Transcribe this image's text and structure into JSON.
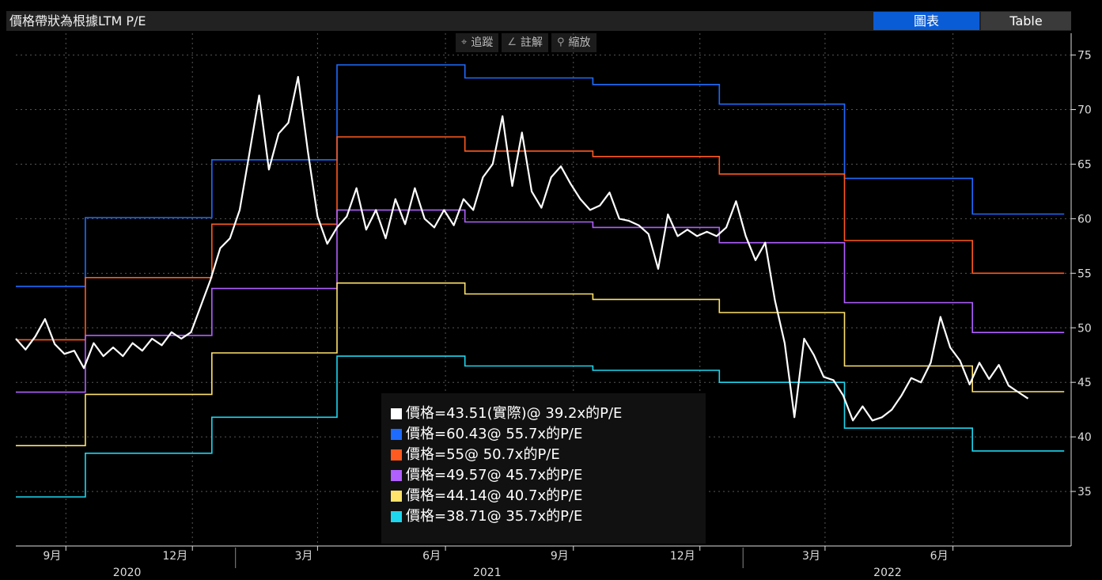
{
  "header": {
    "title": "價格帶狀為根據LTM P/E"
  },
  "tabs": [
    {
      "label": "圖表",
      "active": true
    },
    {
      "label": "Table",
      "active": false
    }
  ],
  "toolbar": [
    {
      "icon": "crosshair-icon",
      "glyph": "⌖",
      "label": "追蹤"
    },
    {
      "icon": "pencil-icon",
      "glyph": "∠",
      "label": "註解"
    },
    {
      "icon": "magnifier-icon",
      "glyph": "⚲",
      "label": "縮放"
    }
  ],
  "colors": {
    "price": "#ffffff",
    "b55_7": "#1e6cff",
    "b50_7": "#ff5a1f",
    "b45_7": "#b060ff",
    "b40_7": "#ffe36a",
    "b35_7": "#1ed7ef"
  },
  "chart_data": {
    "type": "line",
    "ylim": [
      30,
      77
    ],
    "yticks": [
      35,
      40,
      45,
      50,
      55,
      60,
      65,
      70,
      75
    ],
    "x_range": [
      "2020-07-27",
      "2022-08-25"
    ],
    "month_ticks": [
      {
        "label": "9月",
        "date": "2020-09-01"
      },
      {
        "label": "12月",
        "date": "2020-12-01"
      },
      {
        "label": "3月",
        "date": "2021-03-01"
      },
      {
        "label": "6月",
        "date": "2021-06-01"
      },
      {
        "label": "9月",
        "date": "2021-09-01"
      },
      {
        "label": "12月",
        "date": "2021-12-01"
      },
      {
        "label": "3月",
        "date": "2022-03-01"
      },
      {
        "label": "6月",
        "date": "2022-06-01"
      }
    ],
    "year_labels": [
      {
        "label": "2020",
        "date": "2020-10-15"
      },
      {
        "label": "2021",
        "date": "2021-07-01"
      },
      {
        "label": "2022",
        "date": "2022-04-15"
      }
    ],
    "band_breaks": [
      "2020-07-27",
      "2020-09-15",
      "2020-12-15",
      "2021-03-15",
      "2021-06-15",
      "2021-09-15",
      "2021-12-15",
      "2022-03-15",
      "2022-06-15",
      "2022-08-20"
    ],
    "series": [
      {
        "key": "price",
        "legend": "價格=43.51(實際)@ 39.2x的P/E",
        "points": [
          [
            "2020-07-27",
            49.0
          ],
          [
            "2020-08-03",
            48.0
          ],
          [
            "2020-08-10",
            49.2
          ],
          [
            "2020-08-17",
            50.8
          ],
          [
            "2020-08-24",
            48.5
          ],
          [
            "2020-08-31",
            47.6
          ],
          [
            "2020-09-07",
            47.9
          ],
          [
            "2020-09-14",
            46.3
          ],
          [
            "2020-09-21",
            48.6
          ],
          [
            "2020-09-28",
            47.4
          ],
          [
            "2020-10-05",
            48.2
          ],
          [
            "2020-10-12",
            47.4
          ],
          [
            "2020-10-19",
            48.6
          ],
          [
            "2020-10-26",
            47.9
          ],
          [
            "2020-11-02",
            49.0
          ],
          [
            "2020-11-09",
            48.4
          ],
          [
            "2020-11-16",
            49.6
          ],
          [
            "2020-11-23",
            49.0
          ],
          [
            "2020-11-30",
            49.6
          ],
          [
            "2020-12-07",
            52.0
          ],
          [
            "2020-12-14",
            54.4
          ],
          [
            "2020-12-21",
            57.3
          ],
          [
            "2020-12-28",
            58.2
          ],
          [
            "2021-01-04",
            60.8
          ],
          [
            "2021-01-11",
            66.0
          ],
          [
            "2021-01-18",
            71.3
          ],
          [
            "2021-01-25",
            64.5
          ],
          [
            "2021-02-01",
            67.8
          ],
          [
            "2021-02-08",
            68.8
          ],
          [
            "2021-02-15",
            73.0
          ],
          [
            "2021-02-22",
            66.2
          ],
          [
            "2021-03-01",
            60.2
          ],
          [
            "2021-03-08",
            57.7
          ],
          [
            "2021-03-15",
            59.2
          ],
          [
            "2021-03-22",
            60.2
          ],
          [
            "2021-03-29",
            62.8
          ],
          [
            "2021-04-05",
            59.0
          ],
          [
            "2021-04-12",
            60.8
          ],
          [
            "2021-04-19",
            58.2
          ],
          [
            "2021-04-26",
            61.8
          ],
          [
            "2021-05-03",
            59.5
          ],
          [
            "2021-05-10",
            62.8
          ],
          [
            "2021-05-17",
            60.0
          ],
          [
            "2021-05-24",
            59.2
          ],
          [
            "2021-05-31",
            60.8
          ],
          [
            "2021-06-07",
            59.4
          ],
          [
            "2021-06-14",
            61.8
          ],
          [
            "2021-06-21",
            60.8
          ],
          [
            "2021-06-28",
            63.8
          ],
          [
            "2021-07-05",
            65.0
          ],
          [
            "2021-07-12",
            69.4
          ],
          [
            "2021-07-19",
            63.0
          ],
          [
            "2021-07-26",
            67.9
          ],
          [
            "2021-08-02",
            62.5
          ],
          [
            "2021-08-09",
            61.0
          ],
          [
            "2021-08-16",
            63.8
          ],
          [
            "2021-08-23",
            64.8
          ],
          [
            "2021-08-30",
            63.2
          ],
          [
            "2021-09-06",
            61.8
          ],
          [
            "2021-09-13",
            60.8
          ],
          [
            "2021-09-20",
            61.2
          ],
          [
            "2021-09-27",
            62.4
          ],
          [
            "2021-10-04",
            60.0
          ],
          [
            "2021-10-11",
            59.8
          ],
          [
            "2021-10-18",
            59.4
          ],
          [
            "2021-10-25",
            58.6
          ],
          [
            "2021-11-01",
            55.4
          ],
          [
            "2021-11-08",
            60.4
          ],
          [
            "2021-11-15",
            58.4
          ],
          [
            "2021-11-22",
            59.0
          ],
          [
            "2021-11-29",
            58.4
          ],
          [
            "2021-12-06",
            58.8
          ],
          [
            "2021-12-13",
            58.4
          ],
          [
            "2021-12-20",
            59.2
          ],
          [
            "2021-12-27",
            61.6
          ],
          [
            "2022-01-03",
            58.4
          ],
          [
            "2022-01-10",
            56.2
          ],
          [
            "2022-01-17",
            57.8
          ],
          [
            "2022-01-24",
            52.5
          ],
          [
            "2022-01-31",
            48.6
          ],
          [
            "2022-02-07",
            41.8
          ],
          [
            "2022-02-14",
            49.0
          ],
          [
            "2022-02-21",
            47.5
          ],
          [
            "2022-02-28",
            45.5
          ],
          [
            "2022-03-07",
            45.2
          ],
          [
            "2022-03-14",
            43.8
          ],
          [
            "2022-03-21",
            41.5
          ],
          [
            "2022-03-28",
            42.8
          ],
          [
            "2022-04-04",
            41.5
          ],
          [
            "2022-04-11",
            41.8
          ],
          [
            "2022-04-18",
            42.5
          ],
          [
            "2022-04-25",
            43.8
          ],
          [
            "2022-05-02",
            45.4
          ],
          [
            "2022-05-09",
            45.0
          ],
          [
            "2022-05-16",
            46.8
          ],
          [
            "2022-05-23",
            51.0
          ],
          [
            "2022-05-30",
            48.2
          ],
          [
            "2022-06-06",
            47.0
          ],
          [
            "2022-06-13",
            44.8
          ],
          [
            "2022-06-20",
            46.8
          ],
          [
            "2022-06-27",
            45.3
          ],
          [
            "2022-07-04",
            46.6
          ],
          [
            "2022-07-11",
            44.7
          ],
          [
            "2022-07-18",
            44.1
          ],
          [
            "2022-07-25",
            43.51
          ]
        ]
      },
      {
        "key": "b55_7",
        "legend": "價格=60.43@ 55.7x的P/E",
        "levels": [
          53.8,
          60.1,
          65.4,
          74.1,
          72.9,
          72.3,
          70.5,
          63.7,
          60.43
        ]
      },
      {
        "key": "b50_7",
        "legend": "價格=55@ 50.7x的P/E",
        "levels": [
          48.9,
          54.6,
          59.5,
          67.5,
          66.2,
          65.7,
          64.1,
          58.0,
          55.0
        ]
      },
      {
        "key": "b45_7",
        "legend": "價格=49.57@ 45.7x的P/E",
        "levels": [
          44.1,
          49.3,
          53.6,
          60.8,
          59.7,
          59.2,
          57.8,
          52.3,
          49.57
        ]
      },
      {
        "key": "b40_7",
        "legend": "價格=44.14@ 40.7x的P/E",
        "levels": [
          39.2,
          43.9,
          47.7,
          54.1,
          53.1,
          52.6,
          51.4,
          46.5,
          44.14
        ]
      },
      {
        "key": "b35_7",
        "legend": "價格=38.71@ 35.7x的P/E",
        "levels": [
          34.5,
          38.5,
          41.8,
          47.4,
          46.5,
          46.1,
          45.0,
          40.8,
          38.71
        ]
      }
    ]
  }
}
